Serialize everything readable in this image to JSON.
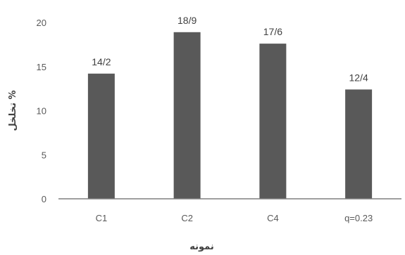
{
  "chart_data": {
    "type": "bar",
    "categories": [
      "C1",
      "C2",
      "C4",
      "q=0.23"
    ],
    "values": [
      14.2,
      18.9,
      17.6,
      12.4
    ],
    "data_labels": [
      "14/2",
      "18/9",
      "17/6",
      "12/4"
    ],
    "xlabel": "نمونه",
    "ylabel": "تخلخل %",
    "ylim": [
      0,
      20
    ],
    "yticks": [
      0,
      5,
      10,
      15,
      20
    ],
    "grid": false,
    "bar_color": "#595959"
  }
}
